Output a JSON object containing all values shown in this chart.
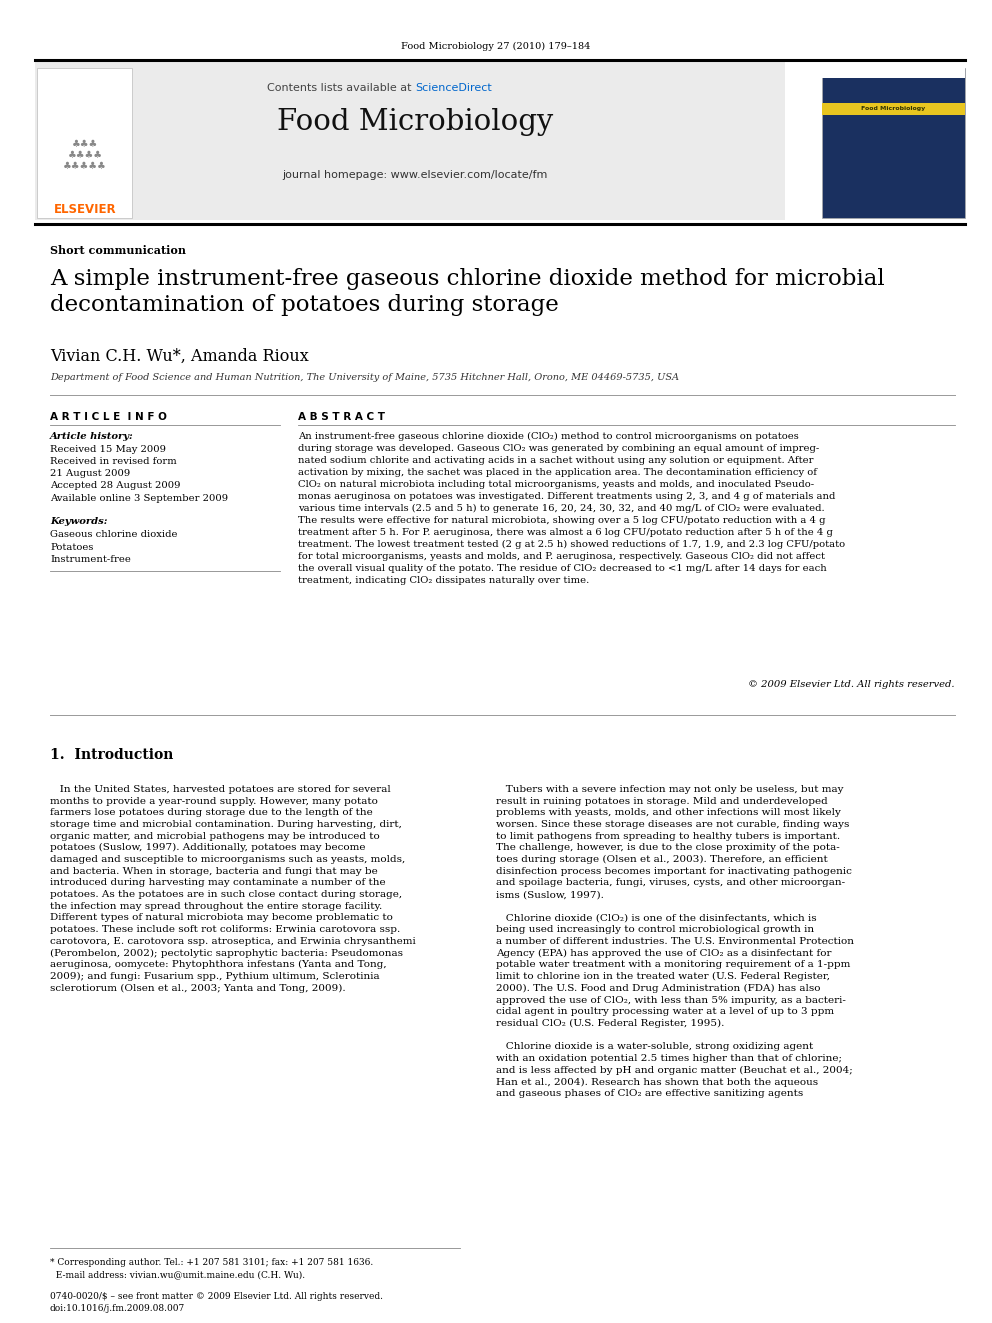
{
  "page_width": 9.92,
  "page_height": 13.23,
  "bg_color": "#ffffff",
  "top_journal_ref": "Food Microbiology 27 (2010) 179–184",
  "header_bg": "#ebebeb",
  "sciencedirect_color": "#0066cc",
  "journal_title": "Food Microbiology",
  "journal_homepage": "journal homepage: www.elsevier.com/locate/fm",
  "elsevier_color": "#FF6600",
  "elsevier_text": "ELSEVIER",
  "section_label": "Short communication",
  "article_title": "A simple instrument-free gaseous chlorine dioxide method for microbial\ndecontamination of potatoes during storage",
  "authors": "Vivian C.H. Wu*, Amanda Rioux",
  "affiliation": "Department of Food Science and Human Nutrition, The University of Maine, 5735 Hitchner Hall, Orono, ME 04469-5735, USA",
  "article_info_header": "A R T I C L E  I N F O",
  "abstract_header": "A B S T R A C T",
  "article_history_label": "Article history:",
  "article_history": "Received 15 May 2009\nReceived in revised form\n21 August 2009\nAccepted 28 August 2009\nAvailable online 3 September 2009",
  "keywords_label": "Keywords:",
  "keywords": "Gaseous chlorine dioxide\nPotatoes\nInstrument-free",
  "abstract_text": "An instrument-free gaseous chlorine dioxide (ClO₂) method to control microorganisms on potatoes during storage was developed. Gaseous ClO₂ was generated by combining an equal amount of impregnated sodium chlorite and activating acids in a sachet without using any solution or equipment. After activation by mixing, the sachet was placed in the application area. The decontamination efficiency of ClO₂ on natural microbiota including total microorganisms, yeasts and molds, and inoculated Pseudomonas aeruginosa on potatoes was investigated. Different treatments using 2, 3, and 4 g of materials and various time intervals (2.5 and 5 h) to generate 16, 20, 24, 30, 32, and 40 mg/L of ClO₂ were evaluated. The results were effective for natural microbiota, showing over a 5 log CFU/potato reduction with a 4 g treatment after 5 h. For P. aeruginosa, there was almost a 6 log CFU/potato reduction after 5 h of the 4 g treatment. The lowest treatment tested (2 g at 2.5 h) showed reductions of 1.7, 1.9, and 2.3 log CFU/potato for total microorganisms, yeasts and molds, and P. aeruginosa, respectively. Gaseous ClO₂ did not affect the overall visual quality of the potato. The residue of ClO₂ decreased to <1 mg/L after 14 days for each treatment, indicating ClO₂ dissipates naturally over time.",
  "copyright": "© 2009 Elsevier Ltd. All rights reserved.",
  "intro_header": "1.  Introduction",
  "intro_left": "   In the United States, harvested potatoes are stored for several\nmonths to provide a year-round supply. However, many potato\nfarmers lose potatoes during storage due to the length of the\nstorage time and microbial contamination. During harvesting, dirt,\norganic matter, and microbial pathogens may be introduced to\npotatoes (Suslow, 1997). Additionally, potatoes may become\ndamaged and susceptible to microorganisms such as yeasts, molds,\nand bacteria. When in storage, bacteria and fungi that may be\nintroduced during harvesting may contaminate a number of the\npotatoes. As the potatoes are in such close contact during storage,\nthe infection may spread throughout the entire storage facility.\nDifferent types of natural microbiota may become problematic to\npotatoes. These include soft rot coliforms: Erwinia carotovora ssp.\ncarotovora, E. carotovora ssp. atroseptica, and Erwinia chrysanthemi\n(Perombelon, 2002); pectolytic saprophytic bacteria: Pseudomonas\naeruginosa, oomycete: Phytophthora infestans (Yanta and Tong,\n2009); and fungi: Fusarium spp., Pythium ultimum, Sclerotinia\nsclerotiorum (Olsen et al., 2003; Yanta and Tong, 2009).",
  "intro_right": "   Tubers with a severe infection may not only be useless, but may\nresult in ruining potatoes in storage. Mild and underdeveloped\nproblems with yeasts, molds, and other infections will most likely\nworsen. Since these storage diseases are not curable, finding ways\nto limit pathogens from spreading to healthy tubers is important.\nThe challenge, however, is due to the close proximity of the pota-\ntoes during storage (Olsen et al., 2003). Therefore, an efficient\ndisinfection process becomes important for inactivating pathogenic\nand spoilage bacteria, fungi, viruses, cysts, and other microorgan-\nisms (Suslow, 1997).\n\n   Chlorine dioxide (ClO₂) is one of the disinfectants, which is\nbeing used increasingly to control microbiological growth in\na number of different industries. The U.S. Environmental Protection\nAgency (EPA) has approved the use of ClO₂ as a disinfectant for\npotable water treatment with a monitoring requirement of a 1-ppm\nlimit to chlorine ion in the treated water (U.S. Federal Register,\n2000). The U.S. Food and Drug Administration (FDA) has also\napproved the use of ClO₂, with less than 5% impurity, as a bacteri-\ncidal agent in poultry processing water at a level of up to 3 ppm\nresidual ClO₂ (U.S. Federal Register, 1995).\n\n   Chlorine dioxide is a water-soluble, strong oxidizing agent\nwith an oxidation potential 2.5 times higher than that of chlorine;\nand is less affected by pH and organic matter (Beuchat et al., 2004;\nHan et al., 2004). Research has shown that both the aqueous\nand gaseous phases of ClO₂ are effective sanitizing agents",
  "footer_left": "* Corresponding author. Tel.: +1 207 581 3101; fax: +1 207 581 1636.\n  E-mail address: vivian.wu@umit.maine.edu (C.H. Wu).",
  "footer_issn": "0740-0020/$ – see front matter © 2009 Elsevier Ltd. All rights reserved.\ndoi:10.1016/j.fm.2009.08.007"
}
